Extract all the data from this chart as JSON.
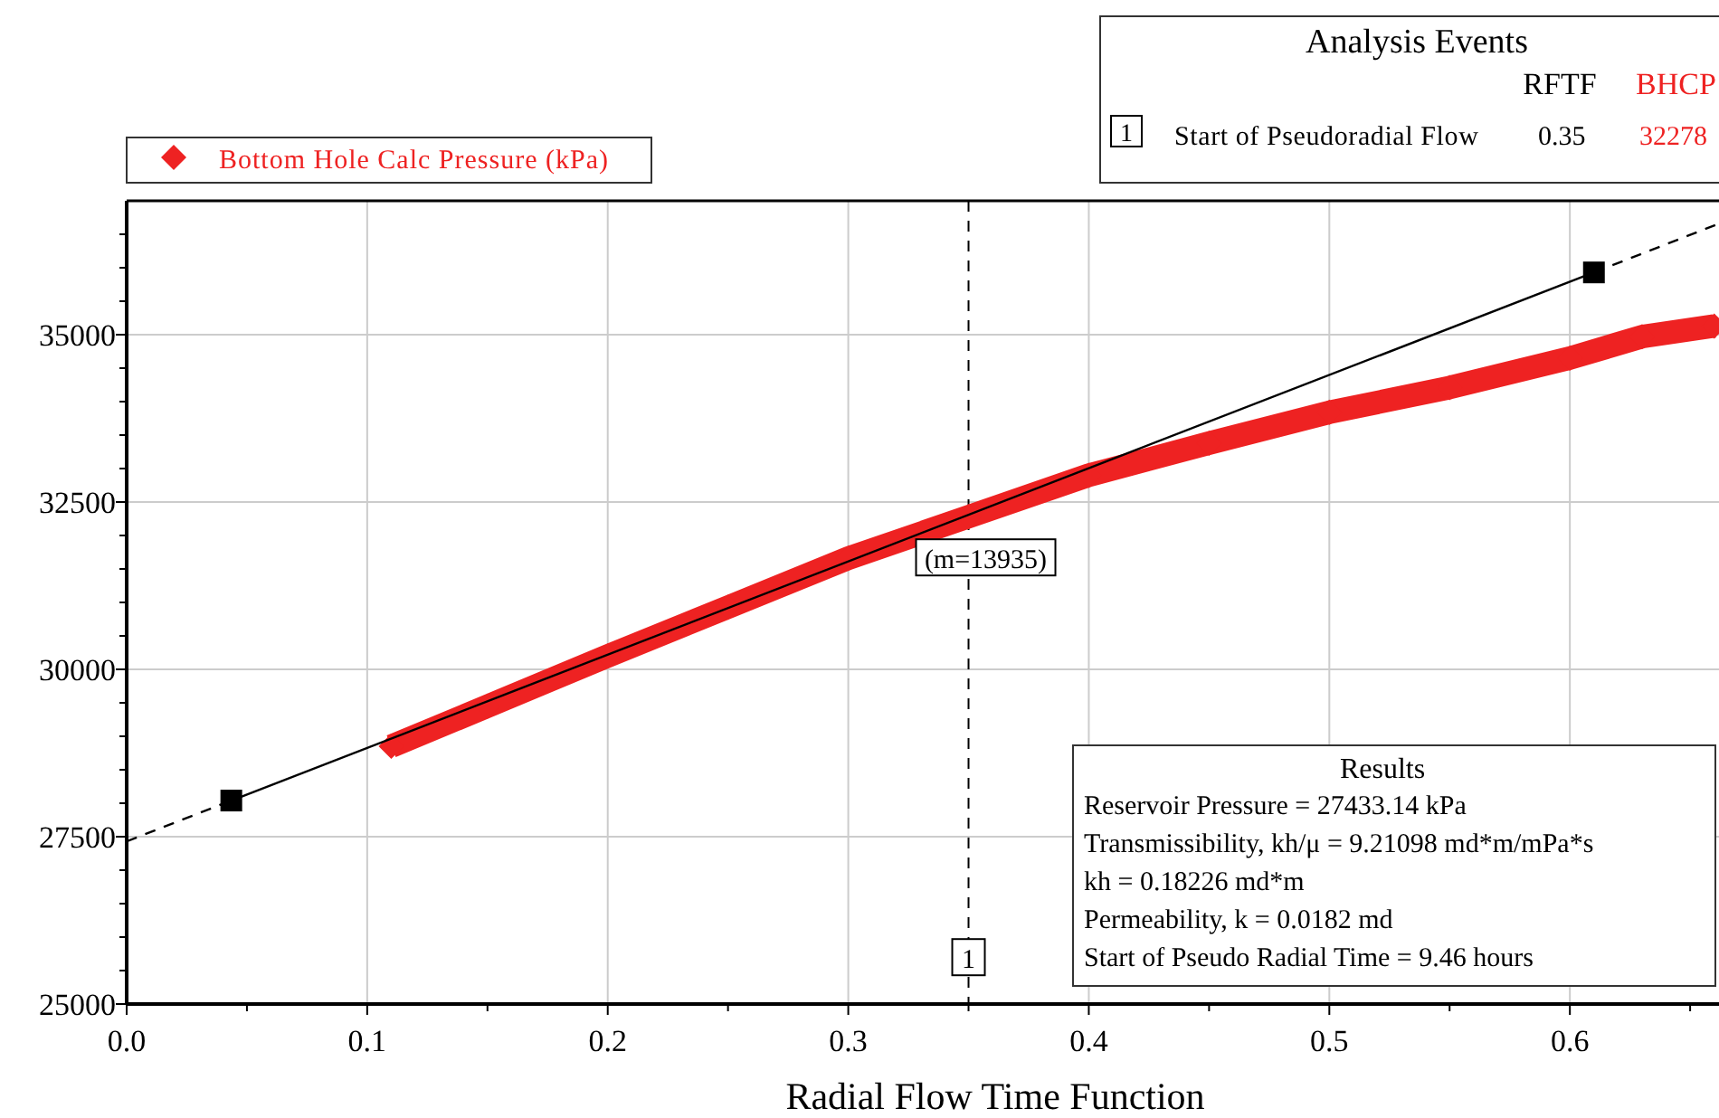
{
  "chart_data": {
    "type": "line",
    "xlabel": "Radial Flow Time Function",
    "xlim": [
      0,
      0.662
    ],
    "ylim": [
      25000,
      37000
    ],
    "xticks": [
      "0.0",
      {
        "value": 0.05,
        "label": null
      },
      0.1,
      {
        "value": 0.15,
        "label": null
      },
      0.2,
      {
        "value": 0.25,
        "label": null
      },
      0.3,
      {
        "value": 0.35,
        "label": null
      },
      0.4,
      {
        "value": 0.45,
        "label": null
      },
      0.5,
      {
        "value": 0.55,
        "label": null
      },
      0.6,
      {
        "value": 0.65,
        "label": null
      }
    ],
    "yticks": [
      25000,
      {
        "value": 25500,
        "label": null
      },
      {
        "value": 26000,
        "label": null
      },
      {
        "value": 26500,
        "label": null
      },
      {
        "value": 27000,
        "label": null
      },
      27500,
      {
        "value": 28000,
        "label": null
      },
      {
        "value": 28500,
        "label": null
      },
      {
        "value": 29000,
        "label": null
      },
      {
        "value": 29500,
        "label": null
      },
      30000,
      {
        "value": 30500,
        "label": null
      },
      {
        "value": 31000,
        "label": null
      },
      {
        "value": 31500,
        "label": null
      },
      {
        "value": 32000,
        "label": null
      },
      32500,
      {
        "value": 33000,
        "label": null
      },
      {
        "value": 33500,
        "label": null
      },
      {
        "value": 34000,
        "label": null
      },
      {
        "value": 34500,
        "label": null
      },
      35000,
      {
        "value": 35500,
        "label": null
      },
      {
        "value": 36000,
        "label": null
      },
      {
        "value": 36500,
        "label": null
      }
    ],
    "grid": true,
    "legend": "top left",
    "series": [
      {
        "name": "Bottom Hole Calc Pressure (kPa)",
        "color": "#ee2222",
        "marker": "diamond",
        "x": [
          0.11,
          0.15,
          0.2,
          0.25,
          0.3,
          0.35,
          0.4,
          0.45,
          0.5,
          0.55,
          0.6,
          0.63,
          0.66
        ],
        "values": [
          28850,
          29450,
          30200,
          30930,
          31660,
          32280,
          32900,
          33380,
          33840,
          34210,
          34650,
          34970,
          35130
        ]
      },
      {
        "type": "line",
        "color": "#000000",
        "marker": "square",
        "line_style": "solid",
        "x": [
          0.0435,
          0.61
        ],
        "values": [
          28040,
          35930
        ]
      },
      {
        "type": "line",
        "color": "#000000",
        "marker": "none",
        "line_style": "dashed",
        "x": [
          0,
          0.0435
        ],
        "values": [
          27430,
          28040
        ]
      },
      {
        "type": "line",
        "color": "#000000",
        "marker": "none",
        "line_style": "dashed",
        "x": [
          0.61,
          0.662
        ],
        "values": [
          35930,
          36660
        ]
      }
    ],
    "ref_lines": [
      {
        "axis": "x",
        "value": 0.35,
        "color": "#000000",
        "line_style": "dashed"
      }
    ],
    "annotations": [
      "Analysis Events",
      "RFTF",
      "BHCP",
      "1",
      "Start of Pseudoradial Flow",
      "0.35",
      "32278",
      {
        "text": "(m=13935)",
        "x": 0.35,
        "y": 31700
      },
      "Results",
      "Reservoir Pressure = 27433.14 kPa",
      "Transmissibility, kh/μ = 9.21098 md*m/mPa*s",
      "kh = 0.18226 md*m",
      "Permeability, k = 0.0182 md",
      "Start of Pseudo Radial Time = 9.46 hours",
      {
        "text": "1",
        "x": 0.35,
        "y": 25700
      }
    ]
  }
}
